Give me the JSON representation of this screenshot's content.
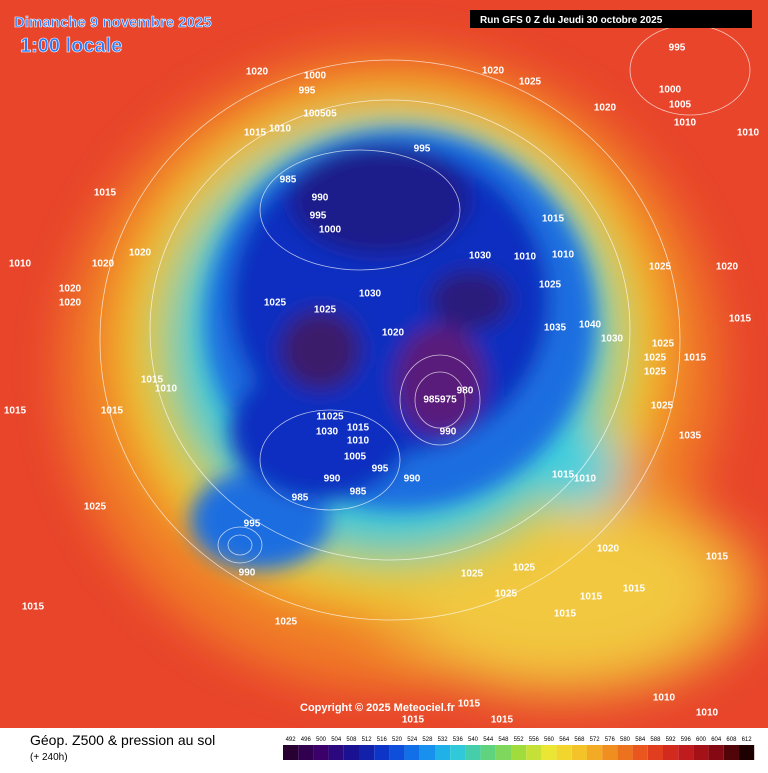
{
  "header": {
    "title": "Dimanche 9 novembre 2025",
    "time": "1:00 locale",
    "run": "Run GFS 0 Z du Jeudi 30 octobre 2025"
  },
  "footer": {
    "title": "Géop. Z500 & pression au sol",
    "subtitle": "(+ 240h)",
    "copyright": "Copyright © 2025 Meteociel.fr"
  },
  "isobar_labels": [
    "1020",
    "1000",
    "995",
    "100505",
    "1015",
    "1010",
    "995",
    "985",
    "990",
    "995",
    "1000",
    "1020",
    "1025",
    "1020",
    "995",
    "1000",
    "1005",
    "1010",
    "1010",
    "1015",
    "1020",
    "1010",
    "1020",
    "1020",
    "1020",
    "1030",
    "1010",
    "1010",
    "1015",
    "1025",
    "1025",
    "1020",
    "1030",
    "1025",
    "1025",
    "1020",
    "1035",
    "1040",
    "1030",
    "1025",
    "1025",
    "1015",
    "1025",
    "1015",
    "1015",
    "1010",
    "1015",
    "1015",
    "980",
    "985975",
    "990",
    "11025",
    "1030",
    "1015",
    "1010",
    "1005",
    "995",
    "990",
    "985",
    "985",
    "990",
    "1025",
    "1035",
    "1015",
    "1010",
    "995",
    "1025",
    "1020",
    "990",
    "1025",
    "1025",
    "1025",
    "1015",
    "1015",
    "1015",
    "1015",
    "1025",
    "1015",
    "1010",
    "1010",
    "1015",
    "1015",
    "1015"
  ],
  "legend": {
    "values": [
      492,
      496,
      500,
      504,
      508,
      512,
      516,
      520,
      524,
      528,
      532,
      536,
      540,
      544,
      548,
      552,
      556,
      560,
      564,
      568,
      572,
      576,
      580,
      584,
      588,
      592,
      596,
      600,
      604,
      608,
      612
    ]
  }
}
